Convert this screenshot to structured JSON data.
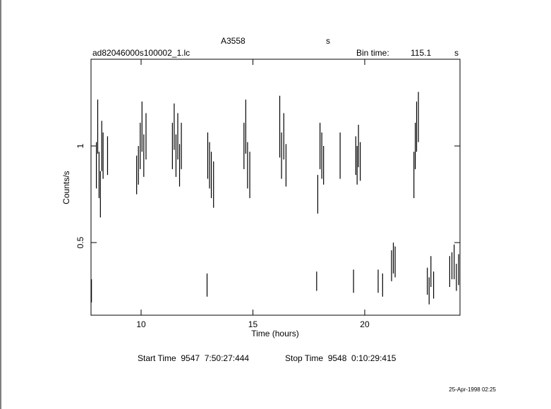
{
  "chart_data": {
    "type": "errorbar",
    "title": "A3558",
    "title_unit": "s",
    "file_name": "ad82046000s100002_1.lc",
    "bin_time_label": "Bin time:",
    "bin_time": "115.1",
    "bin_time_unit": "s",
    "xlabel": "Time (hours)",
    "ylabel": "Counts/s",
    "start_time": "Start Time  9547  7:50:27:444",
    "stop_time": "Stop Time  9548  0:10:29:415",
    "date": "25-Apr-1998 02:25",
    "color": "#000000",
    "xlim": [
      7.76,
      24.26
    ],
    "ylim": [
      0.124,
      1.449
    ],
    "xticks": [
      10,
      15,
      20
    ],
    "yticks": [
      0.5,
      1
    ],
    "x": [
      7.78,
      8.0,
      8.06,
      8.12,
      8.18,
      8.24,
      8.3,
      8.5,
      9.8,
      9.88,
      9.96,
      10.04,
      10.12,
      10.22,
      11.4,
      11.48,
      11.56,
      11.64,
      11.72,
      11.8,
      12.95,
      12.98,
      13.06,
      13.14,
      13.24,
      14.6,
      14.68,
      14.76,
      14.86,
      16.2,
      16.28,
      16.38,
      16.48,
      17.85,
      17.9,
      18.0,
      18.08,
      18.16,
      18.9,
      19.5,
      19.6,
      19.66,
      19.72,
      19.8,
      20.6,
      20.8,
      21.2,
      21.28,
      21.36,
      22.2,
      22.26,
      22.32,
      22.4,
      22.8,
      22.88,
      22.96,
      23.08,
      23.8,
      23.9,
      24.0,
      24.1,
      24.2
    ],
    "values": [
      0.25,
      0.9,
      1.1,
      0.85,
      0.75,
      1.0,
      0.95,
      0.95,
      0.85,
      0.9,
      1.0,
      1.1,
      0.95,
      1.05,
      1.0,
      1.1,
      0.95,
      1.05,
      0.9,
      1.0,
      0.28,
      0.95,
      0.9,
      0.85,
      0.8,
      1.0,
      1.1,
      0.9,
      0.85,
      1.1,
      0.95,
      1.05,
      0.9,
      0.3,
      0.75,
      1.0,
      0.95,
      0.9,
      0.95,
      0.3,
      0.95,
      0.9,
      1.0,
      0.92,
      0.3,
      0.28,
      0.38,
      0.42,
      0.4,
      0.85,
      1.0,
      1.1,
      1.15,
      0.3,
      0.25,
      0.35,
      0.28,
      0.35,
      0.38,
      0.4,
      0.32,
      0.36
    ],
    "errors": [
      0.06,
      0.12,
      0.14,
      0.12,
      0.12,
      0.13,
      0.12,
      0.1,
      0.1,
      0.1,
      0.12,
      0.13,
      0.11,
      0.12,
      0.12,
      0.12,
      0.11,
      0.12,
      0.11,
      0.12,
      0.06,
      0.12,
      0.12,
      0.12,
      0.12,
      0.12,
      0.14,
      0.12,
      0.12,
      0.16,
      0.12,
      0.12,
      0.11,
      0.05,
      0.1,
      0.12,
      0.12,
      0.1,
      0.12,
      0.06,
      0.1,
      0.1,
      0.11,
      0.1,
      0.06,
      0.06,
      0.08,
      0.08,
      0.08,
      0.12,
      0.12,
      0.13,
      0.13,
      0.07,
      0.07,
      0.08,
      0.07,
      0.08,
      0.07,
      0.09,
      0.07,
      0.08
    ]
  }
}
